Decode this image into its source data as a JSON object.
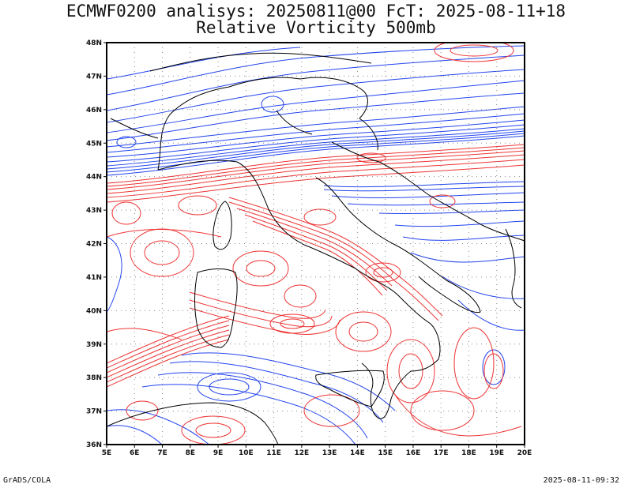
{
  "header": {
    "title_line1": "ECMWF0200 analisys: 20250811@00 FcT: 2025-08-11+18",
    "title_line2": "Relative Vorticity 500mb"
  },
  "map": {
    "lon_ticks": [
      "5E",
      "6E",
      "7E",
      "8E",
      "9E",
      "10E",
      "11E",
      "12E",
      "13E",
      "14E",
      "15E",
      "16E",
      "17E",
      "18E",
      "19E",
      "20E"
    ],
    "lat_ticks": [
      "48N",
      "47N",
      "46N",
      "45N",
      "44N",
      "43N",
      "42N",
      "41N",
      "40N",
      "39N",
      "38N",
      "37N",
      "36N"
    ],
    "lon_range": [
      5,
      20
    ],
    "lat_range": [
      36,
      48
    ],
    "colors": {
      "positive_contours": "#ee3333",
      "negative_contours": "#2244ee",
      "coastlines": "#000000",
      "gridlines": "#888888"
    }
  },
  "footer": {
    "credit": "GrADS/COLA",
    "timestamp": "2025-08-11-09:32"
  }
}
